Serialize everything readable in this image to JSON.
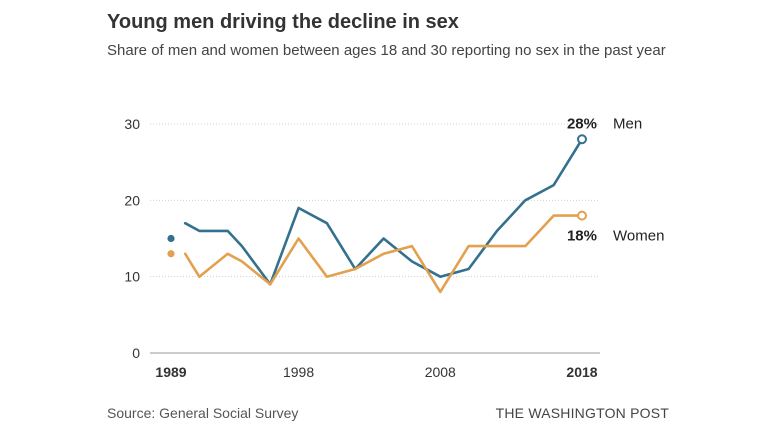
{
  "chart_data": {
    "type": "line",
    "title": "Young men driving the decline in sex",
    "subtitle": "Share of men and women between ages 18 and 30 reporting no sex in the past year",
    "xlabel": "",
    "ylabel": "",
    "ylim": [
      0,
      30
    ],
    "xlim": [
      1989,
      2018
    ],
    "yticks": [
      0,
      10,
      20,
      30
    ],
    "xticks": [
      {
        "value": 1989,
        "label": "1989",
        "bold": true
      },
      {
        "value": 1998,
        "label": "1998",
        "bold": false
      },
      {
        "value": 2008,
        "label": "2008",
        "bold": false
      },
      {
        "value": 2018,
        "label": "2018",
        "bold": true
      }
    ],
    "grid": true,
    "series": [
      {
        "name": "Men",
        "color": "#34718f",
        "x": [
          1989,
          1990,
          1991,
          1993,
          1994,
          1996,
          1998,
          2000,
          2002,
          2004,
          2006,
          2008,
          2010,
          2012,
          2014,
          2016,
          2018
        ],
        "values": [
          15,
          17,
          16,
          16,
          14,
          9,
          19,
          17,
          11,
          15,
          12,
          10,
          11,
          16,
          20,
          22,
          28
        ],
        "end_label": "28%"
      },
      {
        "name": "Women",
        "color": "#e3a04f",
        "x": [
          1989,
          1990,
          1991,
          1993,
          1994,
          1996,
          1998,
          2000,
          2002,
          2004,
          2006,
          2008,
          2010,
          2012,
          2014,
          2016,
          2018
        ],
        "values": [
          13,
          13,
          10,
          13,
          12,
          9,
          15,
          10,
          11,
          13,
          14,
          8,
          14,
          14,
          14,
          18,
          18
        ],
        "end_label": "18%"
      }
    ]
  },
  "footer": {
    "source": "Source: General Social Survey",
    "credit": "THE WASHINGTON POST"
  }
}
